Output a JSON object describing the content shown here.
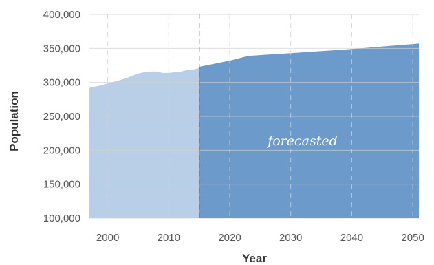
{
  "chart_data": {
    "type": "area",
    "title": "",
    "xlabel": "Year",
    "ylabel": "Population",
    "xlim": [
      1997,
      2051
    ],
    "ylim": [
      100000,
      400000
    ],
    "x_ticks": [
      2000,
      2010,
      2020,
      2030,
      2040,
      2050
    ],
    "y_ticks": [
      100000,
      150000,
      200000,
      250000,
      300000,
      350000,
      400000
    ],
    "y_tick_labels": [
      "100,000",
      "150,000",
      "200,000",
      "250,000",
      "300,000",
      "350,000",
      "400,000"
    ],
    "grid": true,
    "forecast_start": 2015,
    "annotation": "forecasted",
    "colors": {
      "historical": "#b8cfe7",
      "forecast": "#6b9acb",
      "grid": "#d0d0d0",
      "forecast_line": "#555555"
    },
    "series": [
      {
        "segment": "historical",
        "x": [
          1997,
          1999,
          2001,
          2003,
          2005,
          2006,
          2007,
          2008,
          2009,
          2010,
          2011,
          2012,
          2013,
          2014,
          2015
        ],
        "values": [
          292000,
          296000,
          301000,
          306000,
          313000,
          315000,
          316000,
          316000,
          314000,
          314000,
          315000,
          316000,
          318000,
          319000,
          321000
        ]
      },
      {
        "segment": "forecast",
        "x": [
          2015,
          2020,
          2023,
          2030,
          2040,
          2051
        ],
        "values": [
          323000,
          332000,
          339000,
          343000,
          349000,
          357000
        ]
      }
    ]
  }
}
